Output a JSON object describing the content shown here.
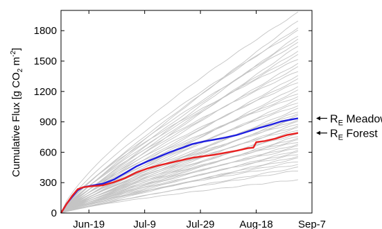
{
  "chart_data": {
    "type": "line",
    "ylabel": "Cumulative Flux [g CO",
    "ylabel_sub": "2",
    "ylabel_mid": " m",
    "ylabel_sup": "-2",
    "ylabel_end": "]",
    "xlim": [
      "2012-06-09",
      "2012-09-07"
    ],
    "ylim": [
      0,
      2000
    ],
    "x_ticks": [
      {
        "date": "2012-06-19",
        "label": "Jun-19"
      },
      {
        "date": "2012-07-09",
        "label": "Jul-9"
      },
      {
        "date": "2012-07-29",
        "label": "Jul-29"
      },
      {
        "date": "2012-08-18",
        "label": "Aug-18"
      },
      {
        "date": "2012-09-07",
        "label": "Sep-7"
      }
    ],
    "y_ticks": [
      0,
      300,
      600,
      900,
      1200,
      1500,
      1800
    ],
    "grid": false,
    "colors": {
      "meadow": "#1f1fe0",
      "forest": "#e82020",
      "ensemble": "#c4c4c4"
    },
    "series": [
      {
        "name": "Meadow",
        "label_prefix": "R",
        "label_sub": "E",
        "color": "#1f1fe0",
        "points": [
          [
            "2012-06-09",
            0
          ],
          [
            "2012-06-11",
            90
          ],
          [
            "2012-06-13",
            160
          ],
          [
            "2012-06-15",
            225
          ],
          [
            "2012-06-17",
            255
          ],
          [
            "2012-06-20",
            270
          ],
          [
            "2012-06-24",
            290
          ],
          [
            "2012-06-28",
            330
          ],
          [
            "2012-07-02",
            395
          ],
          [
            "2012-07-06",
            460
          ],
          [
            "2012-07-10",
            510
          ],
          [
            "2012-07-14",
            555
          ],
          [
            "2012-07-18",
            600
          ],
          [
            "2012-07-22",
            640
          ],
          [
            "2012-07-26",
            680
          ],
          [
            "2012-07-30",
            705
          ],
          [
            "2012-08-03",
            725
          ],
          [
            "2012-08-07",
            745
          ],
          [
            "2012-08-11",
            770
          ],
          [
            "2012-08-15",
            805
          ],
          [
            "2012-08-19",
            840
          ],
          [
            "2012-08-23",
            870
          ],
          [
            "2012-08-27",
            905
          ],
          [
            "2012-08-31",
            925
          ],
          [
            "2012-09-02",
            935
          ]
        ]
      },
      {
        "name": "Forest",
        "label_prefix": "R",
        "label_sub": "E",
        "color": "#e82020",
        "points": [
          [
            "2012-06-09",
            0
          ],
          [
            "2012-06-11",
            90
          ],
          [
            "2012-06-13",
            170
          ],
          [
            "2012-06-15",
            235
          ],
          [
            "2012-06-17",
            255
          ],
          [
            "2012-06-20",
            265
          ],
          [
            "2012-06-24",
            275
          ],
          [
            "2012-06-28",
            305
          ],
          [
            "2012-07-02",
            345
          ],
          [
            "2012-07-06",
            400
          ],
          [
            "2012-07-10",
            440
          ],
          [
            "2012-07-14",
            470
          ],
          [
            "2012-07-18",
            495
          ],
          [
            "2012-07-22",
            520
          ],
          [
            "2012-07-26",
            545
          ],
          [
            "2012-07-30",
            560
          ],
          [
            "2012-08-03",
            575
          ],
          [
            "2012-08-07",
            595
          ],
          [
            "2012-08-11",
            615
          ],
          [
            "2012-08-15",
            640
          ],
          [
            "2012-08-17",
            645
          ],
          [
            "2012-08-18",
            700
          ],
          [
            "2012-08-21",
            710
          ],
          [
            "2012-08-25",
            735
          ],
          [
            "2012-08-29",
            770
          ],
          [
            "2012-09-02",
            790
          ]
        ]
      }
    ],
    "background_series": [
      {
        "end": 1980
      },
      {
        "end": 1900
      },
      {
        "end": 1830
      },
      {
        "end": 1800
      },
      {
        "end": 1750
      },
      {
        "end": 1720
      },
      {
        "end": 1680
      },
      {
        "end": 1650
      },
      {
        "end": 1600
      },
      {
        "end": 1560
      },
      {
        "end": 1520
      },
      {
        "end": 1480
      },
      {
        "end": 1440
      },
      {
        "end": 1400
      },
      {
        "end": 1360
      },
      {
        "end": 1320
      },
      {
        "end": 1290
      },
      {
        "end": 1250
      },
      {
        "end": 1210
      },
      {
        "end": 1180
      },
      {
        "end": 1150
      },
      {
        "end": 1120
      },
      {
        "end": 1090
      },
      {
        "end": 1060
      },
      {
        "end": 1030
      },
      {
        "end": 1000
      },
      {
        "end": 980
      },
      {
        "end": 960
      },
      {
        "end": 940
      },
      {
        "end": 920
      },
      {
        "end": 900
      },
      {
        "end": 880
      },
      {
        "end": 860
      },
      {
        "end": 840
      },
      {
        "end": 820
      },
      {
        "end": 800
      },
      {
        "end": 780
      },
      {
        "end": 760
      },
      {
        "end": 740
      },
      {
        "end": 720
      },
      {
        "end": 700
      },
      {
        "end": 680
      },
      {
        "end": 660
      },
      {
        "end": 640
      },
      {
        "end": 620
      },
      {
        "end": 600
      },
      {
        "end": 580
      },
      {
        "end": 560
      },
      {
        "end": 540
      },
      {
        "end": 510
      },
      {
        "end": 480
      },
      {
        "end": 450
      },
      {
        "end": 420
      },
      {
        "end": 330
      }
    ]
  }
}
